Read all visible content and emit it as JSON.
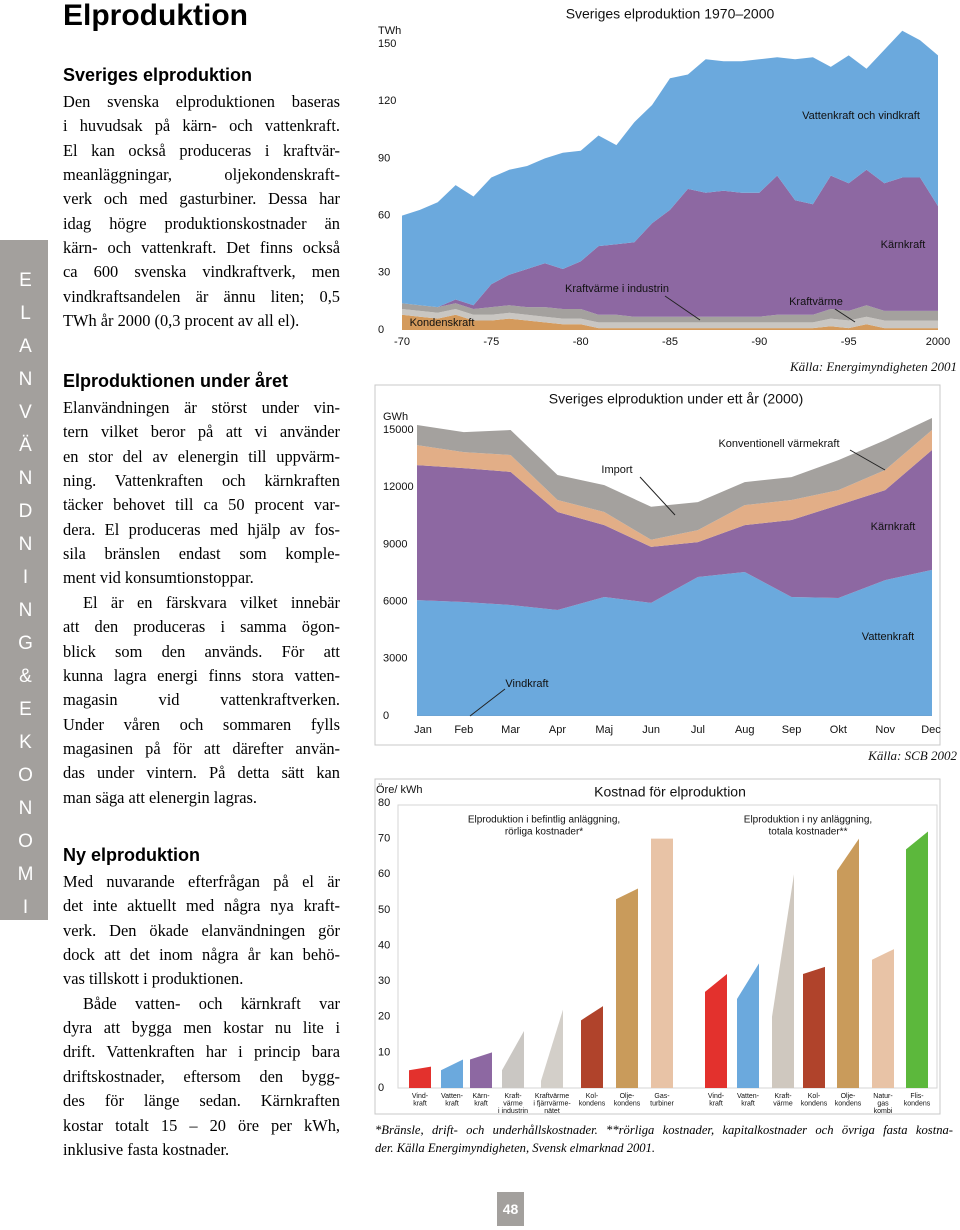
{
  "page": {
    "title": "Elproduktion",
    "sidebar": "ELANVÄNDNING&EKONOMI",
    "page_number": "48"
  },
  "text": {
    "sections": [
      {
        "heading": "Sveriges elproduktion",
        "paragraphs": [
          [
            "Den svenska elproduktionen baseras",
            "i huvudsak på kärn- och vattenkraft.",
            "El kan också produceras i kraftvär-",
            "meanläggningar, oljekondenskraft-",
            "verk och med gasturbiner. Dessa har",
            "idag högre produktionskostnader än",
            "kärn- och vattenkraft. Det finns också",
            "ca 600 svenska vindkraftverk, men",
            "vindkraftsandelen är ännu liten; 0,5",
            "TWh år 2000 (0,3 procent av all el)."
          ]
        ]
      },
      {
        "heading": "Elproduktionen under året",
        "paragraphs": [
          [
            "Elanvändningen är störst under vin-",
            "tern vilket beror på att vi använder",
            "en stor del av elenergin till uppvärm-",
            "ning. Vattenkraften och kärnkraften",
            "täcker behovet till ca 50 procent var-",
            "dera. El produceras med hjälp av fos-",
            "sila bränslen endast som komple-",
            "ment vid konsumtionstoppar."
          ],
          [
            "El är en färskvara vilket innebär",
            "att den produceras i samma ögon-",
            "blick som den används. För att",
            "kunna lagra energi finns stora vatten-",
            "magasin vid vattenkraftverken.",
            "Under våren och sommaren fylls",
            "magasinen på för att därefter använ-",
            "das under vintern. På detta sätt kan",
            "man säga att elenergin lagras."
          ]
        ]
      },
      {
        "heading": "Ny elproduktion",
        "paragraphs": [
          [
            "Med nuvarande efterfrågan på el är",
            "det inte aktuellt med några nya kraft-",
            "verk. Den ökade elanvändningen gör",
            "dock att det inom några år kan behö-",
            "vas tillskott i produktionen."
          ],
          [
            "Både vatten- och kärnkraft var",
            "dyra att bygga men kostar nu lite i",
            "drift. Vattenkraften har i princip bara",
            "driftskostnader, eftersom den bygg-",
            "des för länge sedan. Kärnkraften",
            "kostar totalt 15 – 20 öre per kWh,",
            "inklusive fasta kostnader."
          ]
        ]
      }
    ]
  },
  "chart_data": [
    {
      "type": "stacked-area",
      "title": "Sveriges elproduktion 1970–2000",
      "y_label": "TWh",
      "source": "Källa: Energimyndigheten 2001",
      "x": [
        1970,
        1971,
        1972,
        1973,
        1974,
        1975,
        1976,
        1977,
        1978,
        1979,
        1980,
        1981,
        1982,
        1983,
        1984,
        1985,
        1986,
        1987,
        1988,
        1989,
        1990,
        1991,
        1992,
        1993,
        1994,
        1995,
        1996,
        1997,
        1998,
        1999,
        2000
      ],
      "xlim": [
        1970,
        2000
      ],
      "xticks": [
        {
          "value": 1970,
          "label": "-70"
        },
        {
          "value": 1975,
          "label": "-75"
        },
        {
          "value": 1980,
          "label": "-80"
        },
        {
          "value": 1985,
          "label": "-85"
        },
        {
          "value": 1990,
          "label": "-90"
        },
        {
          "value": 1995,
          "label": "-95"
        },
        2000
      ],
      "ylim": [
        0,
        150
      ],
      "yticks": [
        0,
        30,
        60,
        90,
        120,
        150
      ],
      "series": [
        {
          "name": "Kondenskraft",
          "color": "#d49a5c",
          "values": [
            8,
            7,
            6,
            8,
            5,
            5,
            6,
            5,
            4,
            3,
            3,
            1,
            1,
            1,
            1,
            1,
            1,
            1,
            1,
            1,
            1,
            1,
            1,
            1,
            2,
            1,
            3,
            1,
            1,
            1,
            1
          ]
        },
        {
          "name": "Kraftvärme i industrin",
          "color": "#c9c6c2",
          "values": [
            3,
            3,
            3,
            3,
            3,
            3,
            3,
            3,
            3,
            3,
            3,
            3,
            3,
            3,
            3,
            3,
            3,
            3,
            3,
            3,
            3,
            3,
            3,
            3,
            4,
            4,
            4,
            4,
            4,
            4,
            4
          ]
        },
        {
          "name": "Kraftvärme",
          "color": "#a4a19e",
          "values": [
            3,
            3,
            3,
            3,
            3,
            4,
            4,
            4,
            5,
            5,
            5,
            4,
            4,
            3,
            3,
            3,
            3,
            3,
            3,
            3,
            3,
            4,
            4,
            4,
            5,
            5,
            6,
            5,
            5,
            5,
            5
          ]
        },
        {
          "name": "Kärnkraft",
          "color": "#8d68a2",
          "values": [
            0,
            0,
            0,
            2,
            2,
            12,
            16,
            20,
            23,
            21,
            25,
            36,
            37,
            39,
            49,
            56,
            67,
            65,
            66,
            65,
            65,
            73,
            60,
            58,
            70,
            67,
            71,
            67,
            70,
            70,
            55
          ]
        },
        {
          "name": "Vattenkraft och vindkraft",
          "color": "#6ba9dd",
          "values": [
            46,
            50,
            55,
            60,
            57,
            56,
            55,
            54,
            55,
            61,
            58,
            58,
            52,
            63,
            62,
            69,
            60,
            70,
            68,
            69,
            70,
            62,
            74,
            77,
            57,
            67,
            53,
            70,
            77,
            72,
            79
          ]
        }
      ]
    },
    {
      "type": "stacked-area",
      "title": "Sveriges elproduktion under ett år (2000)",
      "y_label": "GWh",
      "source": "Källa: SCB 2002",
      "categories": [
        "Jan",
        "Feb",
        "Mar",
        "Apr",
        "Maj",
        "Jun",
        "Jul",
        "Aug",
        "Sep",
        "Okt",
        "Nov",
        "Dec"
      ],
      "ylim": [
        0,
        15000
      ],
      "yticks": [
        0,
        3000,
        6000,
        9000,
        12000,
        15000
      ],
      "series": [
        {
          "name": "Vindkraft",
          "color": "#4f8fc8",
          "values": [
            40,
            40,
            40,
            40,
            40,
            40,
            40,
            40,
            40,
            40,
            40,
            40
          ]
        },
        {
          "name": "Vattenkraft",
          "color": "#6ba9dd",
          "values": [
            6040,
            5940,
            5780,
            5520,
            6200,
            5890,
            7250,
            7510,
            6200,
            6150,
            7090,
            7620
          ]
        },
        {
          "name": "Kärnkraft",
          "color": "#8d68a2",
          "values": [
            7080,
            7020,
            6980,
            5140,
            3770,
            2940,
            1830,
            2460,
            4040,
            4870,
            4720,
            6290
          ]
        },
        {
          "name": "Konventionell värmekraft",
          "color": "#e2ae87",
          "values": [
            1050,
            840,
            890,
            630,
            690,
            370,
            630,
            1050,
            1050,
            790,
            1050,
            1050
          ]
        },
        {
          "name": "Import",
          "color": "#a4a19e",
          "values": [
            1050,
            1050,
            1310,
            1310,
            1410,
            1730,
            1470,
            1210,
            1200,
            1570,
            1570,
            630
          ]
        }
      ]
    },
    {
      "type": "range-bar",
      "title": "Kostnad för elproduktion",
      "y_label": "Öre/ kWh",
      "ylim": [
        0,
        80
      ],
      "yticks": [
        0,
        10,
        20,
        30,
        40,
        50,
        60,
        70,
        80
      ],
      "groups": [
        {
          "name": [
            "Elproduktion i befintlig anläggning,",
            "rörliga kostnader*"
          ],
          "categories": [
            [
              "Vind-",
              "kraft"
            ],
            [
              "Vatten-",
              "kraft"
            ],
            [
              "Kärn-",
              "kraft"
            ],
            [
              "Kraft-",
              "värme",
              "i industrin"
            ],
            [
              "Kraftvärme",
              "i fjärrvärme-",
              "nätet"
            ],
            [
              "Kol-",
              "kondens"
            ],
            [
              "Olje-",
              "kondens"
            ],
            [
              "Gas-",
              "turbiner"
            ]
          ],
          "low": [
            5,
            5,
            8,
            5,
            2,
            19,
            53,
            70
          ],
          "high": [
            6,
            8,
            10,
            16,
            22,
            23,
            56,
            70
          ],
          "colors": [
            "#e3312d",
            "#6ba9dd",
            "#8d68a2",
            "#cac7c3",
            "#d3cfc9",
            "#b0432b",
            "#c99b5b",
            "#e8c3a6"
          ]
        },
        {
          "name": [
            "Elproduktion i ny anläggning,",
            "totala kostnader**"
          ],
          "categories": [
            [
              "Vind-",
              "kraft"
            ],
            [
              "Vatten-",
              "kraft"
            ],
            [
              "Kraft-",
              "värme"
            ],
            [
              "Kol-",
              "kondens"
            ],
            [
              "Olje-",
              "kondens"
            ],
            [
              "Natur-",
              "gas",
              "kombi"
            ],
            [
              "Flis-",
              "kondens"
            ]
          ],
          "low": [
            27,
            25,
            20,
            32,
            61,
            36,
            67
          ],
          "high": [
            32,
            35,
            60,
            34,
            70,
            39,
            72
          ],
          "colors": [
            "#e3312d",
            "#6ba9dd",
            "#cfc8bf",
            "#b0432b",
            "#c99b5b",
            "#e8c3a6",
            "#5cb83c"
          ]
        }
      ]
    }
  ],
  "footnote": [
    "*Bränsle, drift- och underhållskostnader. **rörliga kostnader, kapitalkostnader och övriga fasta kostna-",
    "der. Källa Energimyndigheten, Svensk elmarknad 2001."
  ]
}
